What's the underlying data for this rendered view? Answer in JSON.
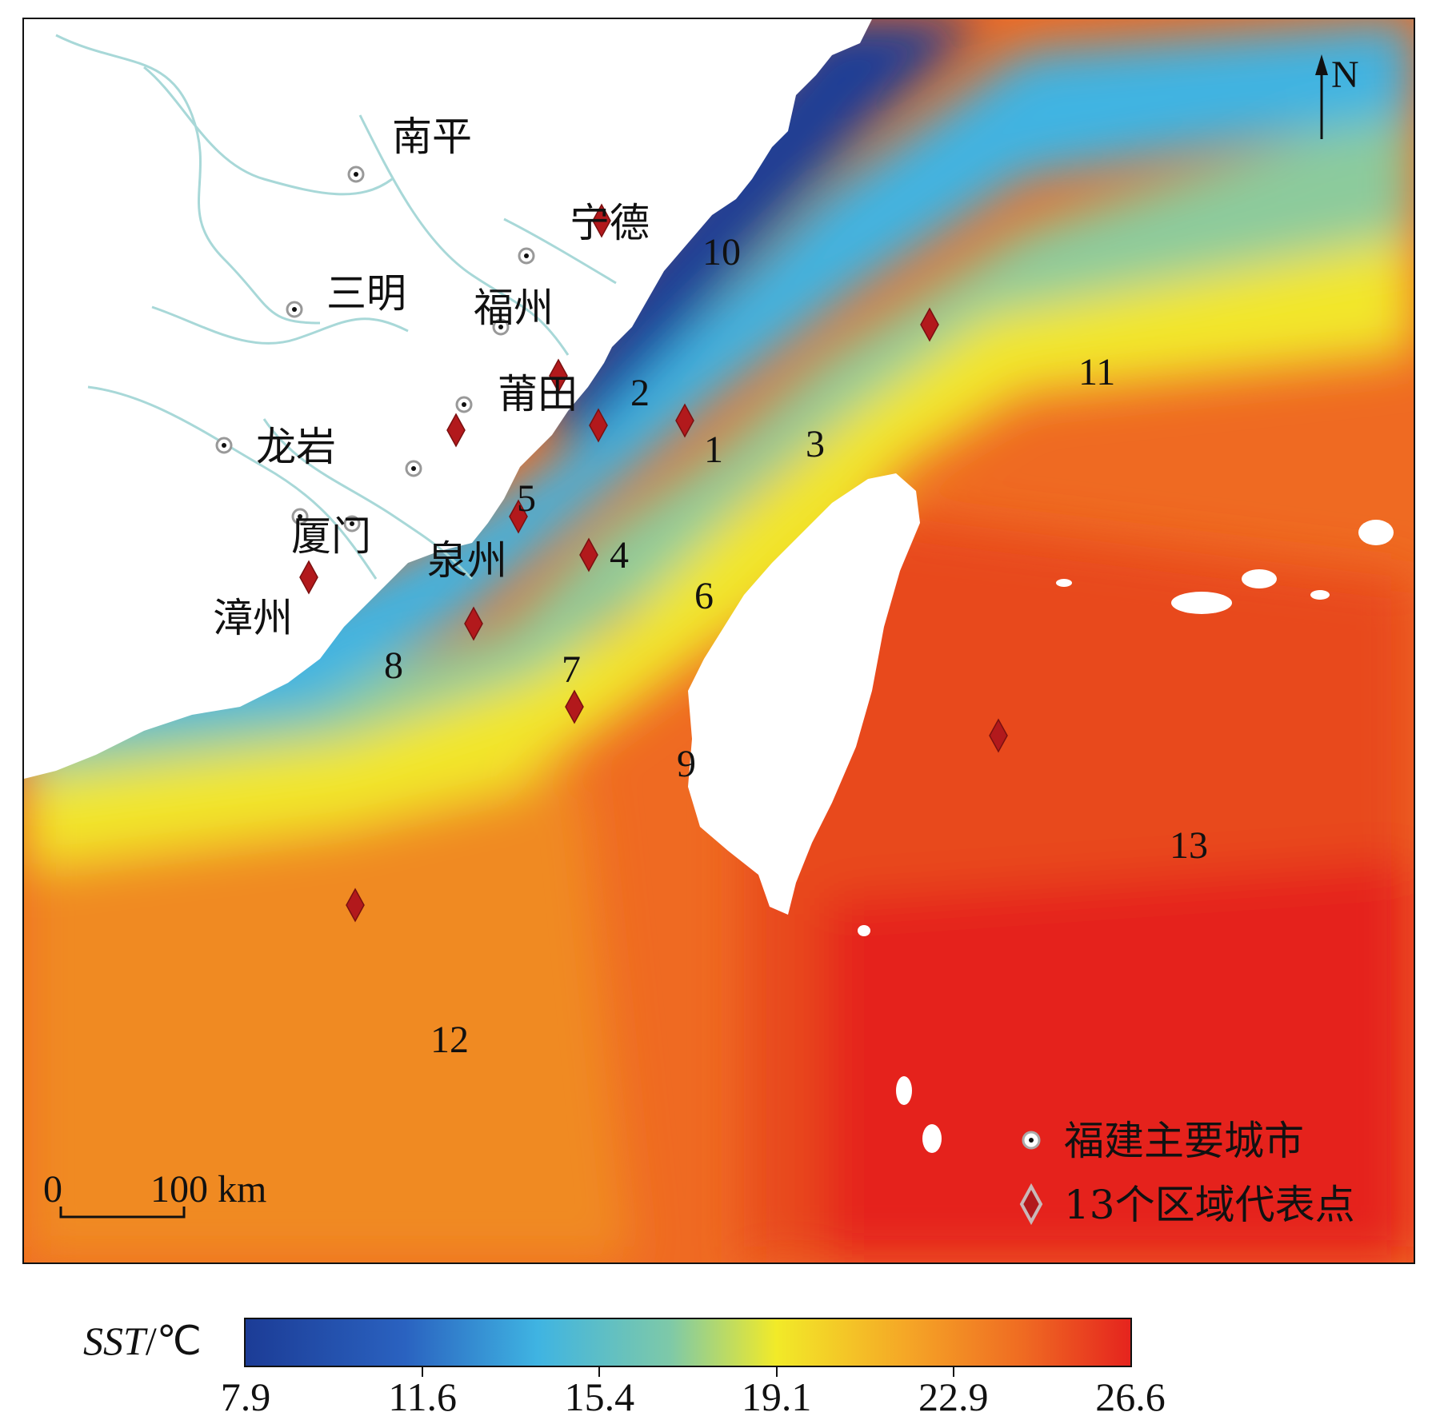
{
  "cities": [
    {
      "id": "nanping",
      "name": "南平"
    },
    {
      "id": "ningde",
      "name": "宁德"
    },
    {
      "id": "sanming",
      "name": "三明"
    },
    {
      "id": "fuzhou",
      "name": "福州"
    },
    {
      "id": "putian",
      "name": "莆田"
    },
    {
      "id": "longyan",
      "name": "龙岩"
    },
    {
      "id": "xiamen",
      "name": "厦门"
    },
    {
      "id": "quanzhou",
      "name": "泉州"
    },
    {
      "id": "zhangzhou",
      "name": "漳州"
    }
  ],
  "points": [
    "1",
    "2",
    "3",
    "4",
    "5",
    "6",
    "7",
    "8",
    "9",
    "10",
    "11",
    "12",
    "13"
  ],
  "north_label": "N",
  "scale": {
    "zero": "0",
    "end": "100 km"
  },
  "legend": {
    "city": "福建主要城市",
    "point": "13个区域代表点"
  },
  "colorbar": {
    "title_italic": "SST",
    "title_unit": "/℃",
    "ticks": [
      "7.9",
      "11.6",
      "15.4",
      "19.1",
      "22.9",
      "26.6"
    ],
    "colors": [
      "#1c3c96",
      "#3fb4e2",
      "#7ec9a8",
      "#f2ea28",
      "#f5a526",
      "#e5241e"
    ]
  }
}
